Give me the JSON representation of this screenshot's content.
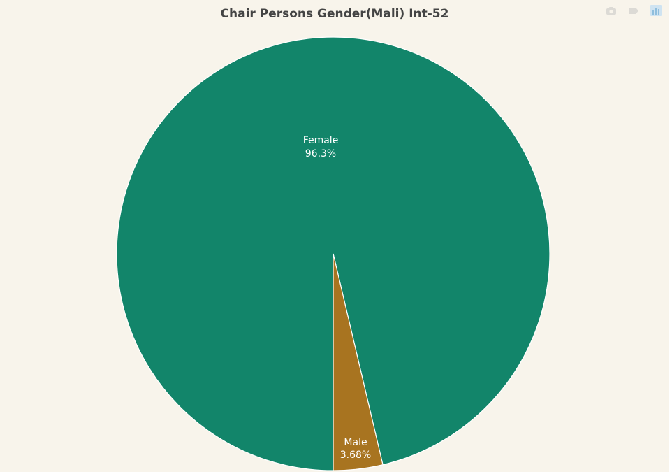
{
  "chart_data": {
    "type": "pie",
    "title": "Chair Persons Gender(Mali) Int-52",
    "slices": [
      {
        "label": "Female",
        "percent_label": "96.3%",
        "value": 96.32,
        "color": "#12856a"
      },
      {
        "label": "Male",
        "percent_label": "3.68%",
        "value": 3.68,
        "color": "#a87420"
      }
    ],
    "direction": "clockwise",
    "background": "#f8f4eb"
  },
  "modebar": {
    "icons": [
      "camera-icon",
      "tag-icon",
      "bar-chart-icon"
    ]
  }
}
